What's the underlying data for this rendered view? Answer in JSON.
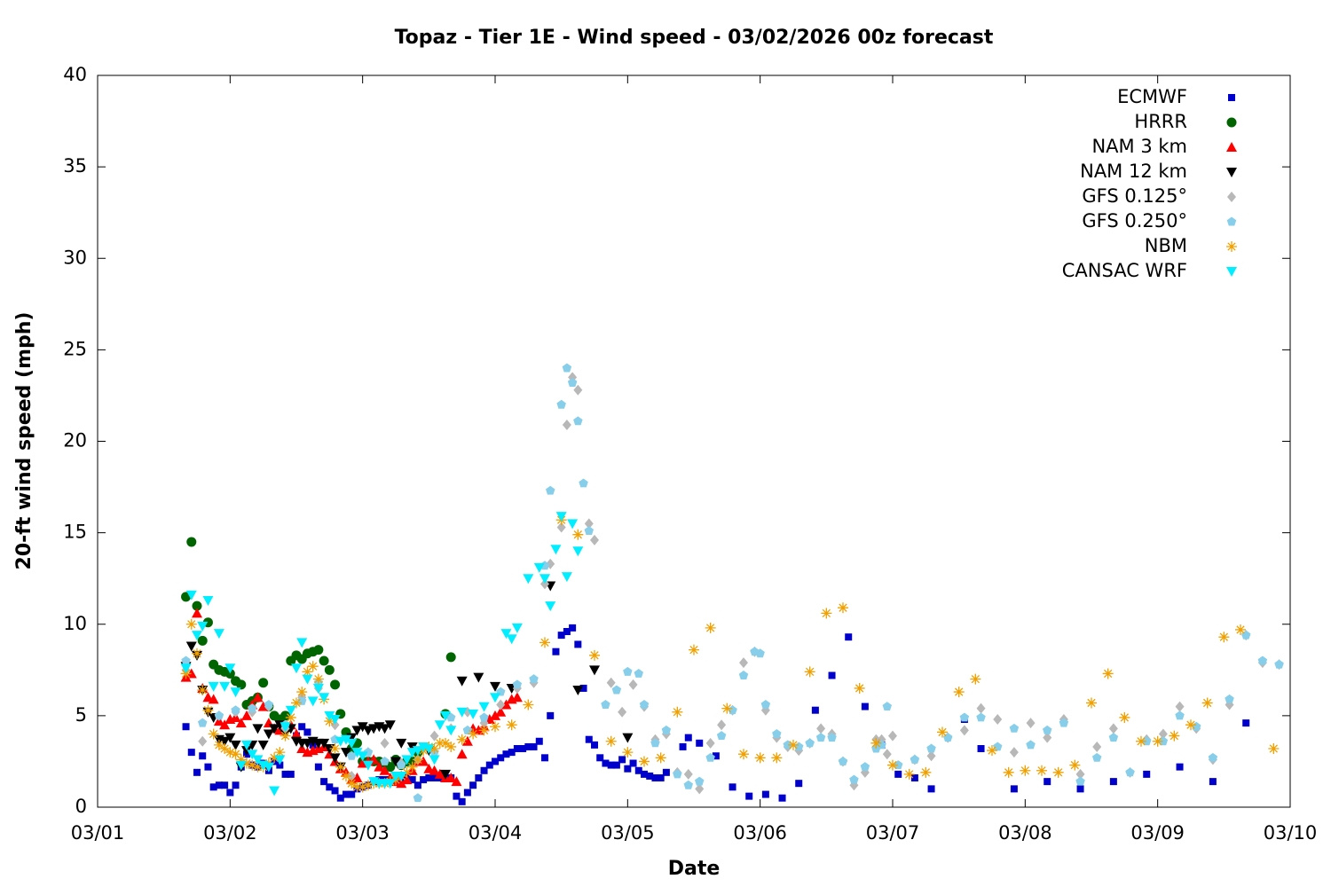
{
  "chart_data": {
    "type": "scatter",
    "title": "Topaz - Tier 1E - Wind speed - 03/02/2026 00z forecast",
    "x_label": "Date",
    "y_label": "20-ft wind speed (mph)",
    "xlim": [
      0,
      216
    ],
    "xticks": [
      {
        "value": 0,
        "label": "03/01"
      },
      {
        "value": 24,
        "label": "03/02"
      },
      {
        "value": 48,
        "label": "03/03"
      },
      {
        "value": 72,
        "label": "03/04"
      },
      {
        "value": 96,
        "label": "03/05"
      },
      {
        "value": 120,
        "label": "03/06"
      },
      {
        "value": 144,
        "label": "03/07"
      },
      {
        "value": 168,
        "label": "03/08"
      },
      {
        "value": 192,
        "label": "03/09"
      },
      {
        "value": 216,
        "label": "03/10"
      }
    ],
    "ylim": [
      0,
      40
    ],
    "yticks": [
      0,
      5,
      10,
      15,
      20,
      25,
      30,
      35,
      40
    ],
    "grid": false,
    "legend": "top right",
    "series": [
      {
        "name": "ECMWF",
        "color": "#0000cc",
        "marker": "square",
        "x": [
          16,
          17,
          18,
          19,
          20,
          21,
          22,
          23,
          24,
          25,
          26,
          27,
          28,
          29,
          30,
          31,
          32,
          33,
          34,
          35,
          36,
          37,
          38,
          39,
          40,
          41,
          42,
          43,
          44,
          45,
          46,
          47,
          48,
          49,
          50,
          51,
          52,
          53,
          54,
          55,
          56,
          57,
          58,
          59,
          60,
          61,
          62,
          63,
          64,
          65,
          66,
          67,
          68,
          69,
          70,
          71,
          72,
          73,
          74,
          75,
          76,
          77,
          78,
          79,
          80,
          81,
          82,
          83,
          84,
          85,
          86,
          87,
          88,
          89,
          90,
          91,
          92,
          93,
          94,
          95,
          96,
          97,
          98,
          99,
          100,
          101,
          102,
          103,
          106,
          107,
          109,
          112,
          115,
          118,
          121,
          124,
          127,
          130,
          133,
          136,
          139,
          142,
          145,
          148,
          151,
          157,
          160,
          166,
          172,
          178,
          184,
          190,
          196,
          202,
          208
        ],
        "values": [
          4.4,
          3.0,
          1.9,
          2.8,
          2.2,
          1.1,
          1.2,
          1.2,
          0.8,
          1.2,
          2.2,
          2.9,
          2.3,
          2.2,
          2.4,
          2.0,
          2.5,
          2.3,
          1.8,
          1.8,
          3.9,
          4.4,
          4.1,
          3.4,
          2.2,
          1.4,
          1.1,
          0.9,
          0.5,
          0.7,
          0.7,
          1.0,
          1.1,
          1.2,
          1.4,
          1.5,
          1.5,
          1.5,
          1.5,
          1.6,
          1.7,
          1.5,
          1.2,
          1.5,
          1.6,
          1.6,
          1.6,
          1.6,
          1.6,
          0.6,
          0.3,
          0.8,
          1.2,
          1.6,
          2.0,
          2.3,
          2.5,
          2.7,
          2.9,
          3.0,
          3.2,
          3.2,
          3.3,
          3.3,
          3.6,
          2.7,
          5.0,
          8.5,
          9.4,
          9.6,
          9.8,
          8.9,
          6.5,
          3.7,
          3.4,
          2.7,
          2.4,
          2.3,
          2.3,
          2.6,
          2.1,
          2.4,
          2.0,
          1.8,
          1.7,
          1.6,
          1.6,
          1.9,
          3.3,
          3.8,
          3.5,
          2.8,
          1.1,
          0.6,
          0.7,
          0.5,
          1.3,
          5.3,
          7.2,
          9.3,
          5.5,
          3.4,
          1.8,
          1.6,
          1.0,
          4.8,
          3.2,
          1.0,
          1.4,
          1.0,
          1.4,
          1.8,
          2.2,
          1.4,
          4.6
        ]
      },
      {
        "name": "HRRR",
        "color": "#006400",
        "marker": "circle",
        "x": [
          16,
          17,
          18,
          19,
          20,
          21,
          22,
          23,
          24,
          25,
          26,
          27,
          28,
          29,
          30,
          31,
          32,
          33,
          34,
          35,
          36,
          37,
          38,
          39,
          40,
          41,
          42,
          43,
          44,
          45,
          46,
          47,
          48,
          49,
          50,
          51,
          52,
          53,
          54,
          55,
          56,
          57,
          58,
          63,
          64
        ],
        "values": [
          11.5,
          14.5,
          11.0,
          9.1,
          10.1,
          7.8,
          7.5,
          7.4,
          7.3,
          6.9,
          6.7,
          5.6,
          5.8,
          6.0,
          6.8,
          5.5,
          5.0,
          4.8,
          5.0,
          8.0,
          8.3,
          8.1,
          8.4,
          8.5,
          8.6,
          8.0,
          7.5,
          6.7,
          5.1,
          4.1,
          3.2,
          3.5,
          2.5,
          2.5,
          2.5,
          2.5,
          2.4,
          2.2,
          2.6,
          2.3,
          2.5,
          2.5,
          3.0,
          5.1,
          8.2
        ]
      },
      {
        "name": "NAM 3 km",
        "color": "#ff0000",
        "marker": "triangle-up",
        "x": [
          16,
          17,
          18,
          19,
          20,
          21,
          22,
          23,
          24,
          25,
          26,
          27,
          28,
          29,
          30,
          31,
          32,
          33,
          34,
          35,
          36,
          37,
          38,
          39,
          40,
          41,
          42,
          43,
          44,
          45,
          46,
          47,
          48,
          49,
          50,
          51,
          52,
          53,
          54,
          55,
          56,
          57,
          58,
          59,
          60,
          61,
          62,
          63,
          64,
          65,
          66,
          67,
          68,
          69,
          70,
          71,
          72,
          73,
          74,
          75,
          76
        ],
        "values": [
          7.1,
          7.3,
          10.6,
          6.5,
          6.0,
          5.9,
          4.7,
          4.5,
          4.8,
          4.9,
          4.6,
          5.0,
          5.6,
          6.0,
          5.5,
          4.6,
          4.3,
          4.2,
          4.4,
          4.5,
          4.0,
          3.2,
          3.0,
          3.1,
          3.2,
          3.3,
          2.9,
          2.5,
          2.1,
          1.9,
          1.5,
          1.6,
          2.4,
          2.5,
          2.6,
          2.2,
          2.0,
          1.6,
          1.4,
          1.3,
          1.5,
          2.0,
          2.5,
          2.5,
          2.1,
          2.0,
          1.8,
          1.6,
          1.6,
          1.4,
          2.9,
          3.6,
          4.3,
          4.2,
          4.4,
          4.8,
          5.0,
          5.2,
          5.6,
          5.9,
          6.0
        ]
      },
      {
        "name": "NAM 12 km",
        "color": "#000000",
        "marker": "triangle-down",
        "x": [
          16,
          17,
          18,
          19,
          20,
          21,
          22,
          23,
          24,
          25,
          26,
          27,
          28,
          29,
          30,
          31,
          32,
          33,
          34,
          35,
          36,
          37,
          38,
          39,
          40,
          41,
          42,
          43,
          44,
          45,
          46,
          47,
          48,
          49,
          50,
          51,
          52,
          53,
          54,
          55,
          57,
          60,
          63,
          66,
          69,
          72,
          75,
          82,
          87,
          90,
          96
        ],
        "values": [
          7.7,
          8.8,
          8.3,
          6.4,
          5.2,
          4.9,
          3.7,
          3.6,
          3.8,
          3.4,
          2.2,
          3.1,
          3.4,
          4.3,
          3.4,
          4.0,
          4.3,
          4.5,
          4.0,
          4.3,
          3.6,
          3.5,
          3.5,
          3.6,
          3.5,
          3.5,
          3.2,
          2.7,
          2.2,
          3.0,
          3.8,
          4.2,
          4.4,
          4.2,
          4.3,
          4.4,
          4.3,
          4.5,
          2.5,
          3.5,
          3.3,
          3.1,
          1.8,
          6.9,
          7.1,
          6.6,
          6.5,
          12.1,
          6.4,
          7.5,
          3.8
        ]
      },
      {
        "name": "GFS 0.125°",
        "color": "#b8b8b8",
        "marker": "diamond",
        "x": [
          16,
          19,
          22,
          25,
          28,
          31,
          34,
          37,
          40,
          43,
          46,
          49,
          52,
          55,
          58,
          61,
          64,
          67,
          70,
          73,
          76,
          79,
          81,
          82,
          84,
          85,
          86,
          87,
          89,
          90,
          93,
          95,
          97,
          99,
          101,
          103,
          105,
          107,
          109,
          111,
          113,
          115,
          117,
          119,
          121,
          123,
          125,
          127,
          129,
          131,
          133,
          135,
          137,
          139,
          141,
          142,
          143,
          144,
          148,
          151,
          154,
          157,
          160,
          163,
          166,
          169,
          172,
          175,
          178,
          181,
          184,
          187,
          190,
          193,
          196,
          199,
          202,
          205,
          208,
          211,
          214
        ],
        "values": [
          7.5,
          3.6,
          5.0,
          5.2,
          5.2,
          5.5,
          4.3,
          6.0,
          6.5,
          4.5,
          1.7,
          3.0,
          3.5,
          2.4,
          2.6,
          3.9,
          4.3,
          5.2,
          4.6,
          5.6,
          6.5,
          6.8,
          12.2,
          13.3,
          15.3,
          20.9,
          23.5,
          22.8,
          15.5,
          14.6,
          6.8,
          5.2,
          6.7,
          5.5,
          3.7,
          4.0,
          1.9,
          1.8,
          1.0,
          3.5,
          4.5,
          5.3,
          7.9,
          8.5,
          5.3,
          3.8,
          3.3,
          3.1,
          3.5,
          4.3,
          4.0,
          2.5,
          1.2,
          1.9,
          3.7,
          3.7,
          2.9,
          3.9,
          2.6,
          2.8,
          3.8,
          4.2,
          5.4,
          4.8,
          3.0,
          4.6,
          3.8,
          4.8,
          1.8,
          3.3,
          4.3,
          1.9,
          3.7,
          4.0,
          5.5,
          4.3,
          2.6,
          5.6,
          9.4,
          7.9,
          7.8
        ]
      },
      {
        "name": "GFS 0.250°",
        "color": "#87ceeb",
        "marker": "pentagon",
        "x": [
          16,
          19,
          22,
          25,
          28,
          31,
          34,
          37,
          40,
          43,
          46,
          49,
          52,
          55,
          58,
          61,
          64,
          67,
          70,
          73,
          76,
          79,
          81,
          82,
          84,
          85,
          86,
          87,
          88,
          89,
          92,
          94,
          96,
          98,
          99,
          101,
          103,
          105,
          107,
          109,
          111,
          113,
          115,
          117,
          119,
          120,
          121,
          123,
          125,
          127,
          129,
          131,
          133,
          135,
          137,
          139,
          141,
          142,
          143,
          145,
          148,
          151,
          154,
          157,
          160,
          163,
          166,
          169,
          172,
          175,
          178,
          181,
          184,
          187,
          190,
          193,
          196,
          199,
          202,
          205,
          208,
          211,
          214
        ],
        "values": [
          8.0,
          4.6,
          5.0,
          5.3,
          5.4,
          5.6,
          4.5,
          5.8,
          6.8,
          3.7,
          2.8,
          3.0,
          2.5,
          2.3,
          0.5,
          3.0,
          4.9,
          4.2,
          4.9,
          6.3,
          6.7,
          7.0,
          13.2,
          17.3,
          22.0,
          24.0,
          23.2,
          21.1,
          17.7,
          15.1,
          5.6,
          6.4,
          7.4,
          7.3,
          5.6,
          3.5,
          4.2,
          1.8,
          1.2,
          1.4,
          2.7,
          3.9,
          5.3,
          7.2,
          8.5,
          8.4,
          5.6,
          4.0,
          3.4,
          3.3,
          3.5,
          3.8,
          3.8,
          2.5,
          1.5,
          2.2,
          3.2,
          3.4,
          5.5,
          2.3,
          2.6,
          3.2,
          3.8,
          4.9,
          4.9,
          3.3,
          4.3,
          3.4,
          4.2,
          4.6,
          1.4,
          2.7,
          3.8,
          1.9,
          3.6,
          3.6,
          5.0,
          4.4,
          2.7,
          5.9,
          9.4,
          8.0,
          7.8
        ]
      },
      {
        "name": "NBM",
        "color": "#f0a000",
        "marker": "star",
        "x": [
          16,
          17,
          18,
          19,
          20,
          21,
          22,
          23,
          24,
          25,
          26,
          27,
          28,
          29,
          30,
          31,
          32,
          33,
          34,
          35,
          36,
          37,
          38,
          39,
          40,
          41,
          42,
          43,
          44,
          45,
          46,
          47,
          48,
          49,
          50,
          51,
          52,
          53,
          54,
          55,
          56,
          57,
          58,
          59,
          60,
          61,
          62,
          63,
          64,
          66,
          68,
          70,
          72,
          75,
          78,
          81,
          84,
          87,
          90,
          93,
          96,
          99,
          102,
          105,
          108,
          111,
          114,
          117,
          120,
          123,
          126,
          129,
          132,
          135,
          138,
          141,
          144,
          147,
          150,
          153,
          156,
          159,
          162,
          165,
          168,
          171,
          174,
          177,
          180,
          183,
          186,
          189,
          192,
          195,
          198,
          201,
          204,
          207,
          213
        ],
        "values": [
          7.3,
          10.0,
          8.4,
          6.4,
          5.3,
          4.0,
          3.4,
          3.2,
          3.0,
          2.9,
          2.6,
          2.4,
          2.3,
          2.2,
          2.2,
          2.4,
          2.7,
          3.0,
          3.9,
          4.9,
          5.7,
          6.3,
          7.4,
          7.7,
          7.0,
          5.9,
          4.7,
          3.2,
          2.2,
          1.7,
          1.3,
          1.1,
          1.1,
          1.2,
          1.3,
          1.3,
          1.3,
          1.4,
          1.5,
          1.7,
          1.9,
          2.2,
          2.6,
          3.1,
          3.3,
          3.2,
          3.5,
          3.5,
          3.3,
          3.7,
          4.0,
          4.2,
          4.4,
          4.5,
          5.6,
          9.0,
          15.7,
          14.9,
          8.3,
          3.6,
          3.0,
          2.5,
          2.7,
          5.2,
          8.6,
          9.8,
          5.4,
          2.9,
          2.7,
          2.7,
          3.4,
          7.4,
          10.6,
          10.9,
          6.5,
          3.5,
          2.3,
          1.8,
          1.9,
          4.1,
          6.3,
          7.0,
          3.1,
          1.9,
          2.0,
          2.0,
          1.9,
          2.3,
          5.7,
          7.3,
          4.9,
          3.6,
          3.6,
          3.9,
          4.5,
          5.7,
          9.3,
          9.7,
          3.2
        ]
      },
      {
        "name": "CANSAC WRF",
        "color": "#00eeff",
        "marker": "triangle-down",
        "x": [
          16,
          17,
          18,
          19,
          20,
          21,
          22,
          23,
          24,
          25,
          26,
          27,
          28,
          29,
          30,
          31,
          32,
          33,
          34,
          35,
          36,
          37,
          38,
          39,
          40,
          41,
          42,
          43,
          44,
          45,
          46,
          47,
          48,
          49,
          50,
          51,
          52,
          53,
          54,
          55,
          56,
          57,
          58,
          59,
          60,
          61,
          62,
          63,
          64,
          66,
          68,
          70,
          72,
          74,
          75,
          76,
          78,
          80,
          81,
          82,
          83,
          84,
          85,
          86,
          87
        ],
        "values": [
          7.6,
          11.6,
          9.4,
          9.9,
          11.3,
          6.6,
          9.5,
          6.6,
          7.6,
          6.3,
          2.3,
          3.4,
          2.9,
          2.6,
          2.3,
          2.2,
          0.9,
          2.6,
          4.4,
          5.3,
          7.6,
          9.0,
          7.0,
          5.8,
          6.5,
          6.0,
          5.0,
          4.8,
          3.6,
          3.7,
          3.5,
          3.0,
          2.8,
          2.3,
          1.4,
          1.3,
          1.3,
          1.3,
          1.7,
          1.7,
          2.6,
          3.0,
          3.1,
          3.3,
          3.2,
          2.6,
          4.5,
          5.0,
          4.2,
          5.2,
          5.1,
          5.5,
          6.0,
          9.5,
          9.2,
          9.8,
          12.5,
          13.1,
          12.5,
          11.0,
          14.1,
          15.9,
          12.6,
          15.5,
          14.0
        ]
      }
    ]
  }
}
